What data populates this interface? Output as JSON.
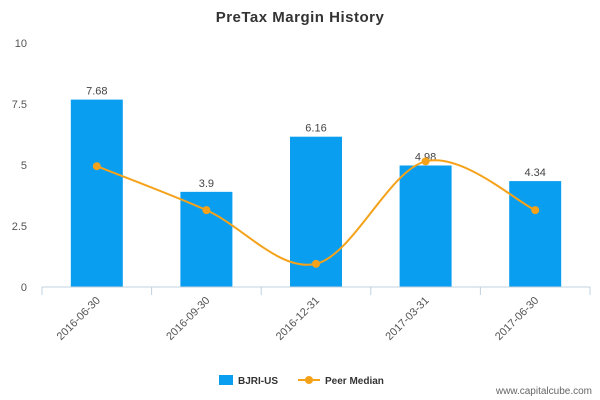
{
  "chart_data": {
    "type": "bar",
    "title": "PreTax Margin History",
    "categories": [
      "2016-06-30",
      "2016-09-30",
      "2016-12-31",
      "2017-03-31",
      "2017-06-30"
    ],
    "series": [
      {
        "name": "BJRI-US",
        "type": "bar",
        "values": [
          7.68,
          3.9,
          6.16,
          4.98,
          4.34
        ],
        "color": "#0a9ef0"
      },
      {
        "name": "Peer Median",
        "type": "line",
        "values": [
          4.95,
          3.15,
          0.95,
          5.15,
          3.15
        ],
        "color": "#f5a21b"
      }
    ],
    "data_labels": [
      "7.68",
      "3.9",
      "6.16",
      "4.98",
      "4.34"
    ],
    "yticks": [
      "0",
      "2.5",
      "5",
      "7.5",
      "10"
    ],
    "ylim": [
      0,
      10
    ],
    "grid": false,
    "legend_position": "bottom"
  },
  "footer": "www.capitalcube.com"
}
